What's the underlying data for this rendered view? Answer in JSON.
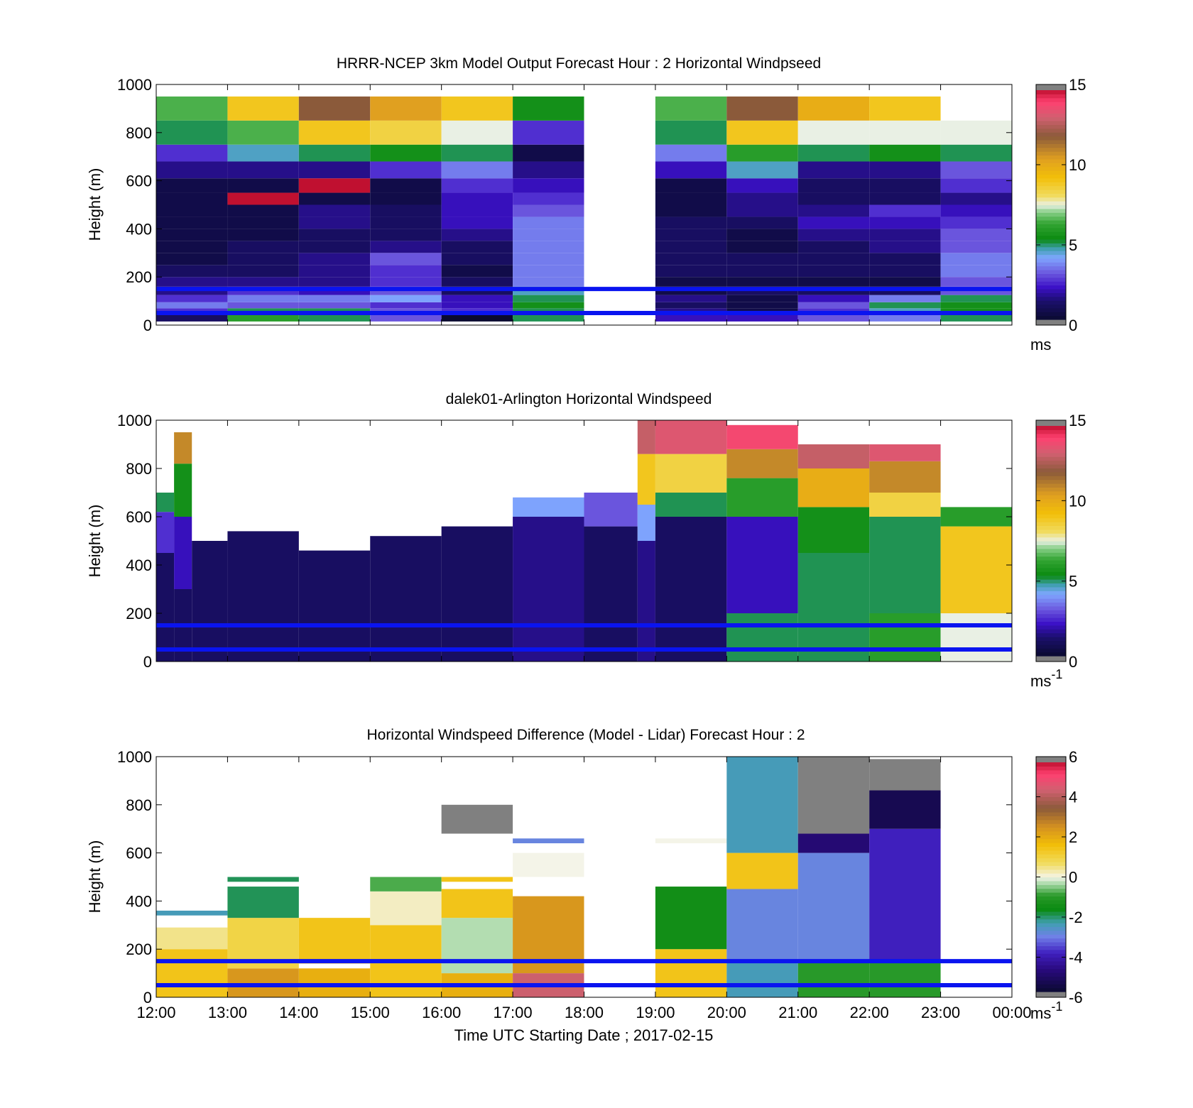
{
  "figure": {
    "xlabel": "Time UTC  Starting Date ; 2017-02-15",
    "x_tick_labels": [
      "12:00",
      "13:00",
      "14:00",
      "15:00",
      "16:00",
      "17:00",
      "18:00",
      "19:00",
      "20:00",
      "21:00",
      "22:00",
      "23:00",
      "00:00"
    ],
    "reference_line_color": "#0a14f0"
  },
  "chart_data": [
    {
      "type": "heatmap",
      "title": "HRRR-NCEP 3km Model Output   Forecast Hour : 2 Horizontal Windpseed",
      "ylabel": "Height (m)",
      "xlabel": "",
      "ylim": [
        0,
        1000
      ],
      "y_ticks": [
        0,
        200,
        400,
        600,
        800,
        1000
      ],
      "xlim": [
        12,
        24
      ],
      "x_tick_labels_shown": false,
      "reference_lines_m": [
        50,
        150
      ],
      "colorbar": {
        "min": 0,
        "max": 15,
        "ticks": [
          0,
          5,
          10,
          15
        ],
        "unit_label": "ms",
        "unit_superscript": "",
        "palette": "wind"
      },
      "column_hours": [
        12,
        13,
        14,
        15,
        16,
        17,
        18,
        19,
        20,
        21,
        22,
        23
      ],
      "row_heights_m": [
        15,
        45,
        70,
        95,
        125,
        160,
        200,
        250,
        300,
        350,
        400,
        450,
        500,
        550,
        610,
        680,
        750,
        850,
        950
      ],
      "values": [
        [
          1.0,
          6.0,
          5.0,
          3.0,
          0.0,
          5.0,
          null,
          2.0,
          2.0,
          3.0,
          3.5,
          5.0
        ],
        [
          2.5,
          5.0,
          5.0,
          3.0,
          2.5,
          5.0,
          null,
          1.5,
          0.5,
          2.5,
          4.5,
          5.5
        ],
        [
          3.5,
          3.0,
          3.0,
          2.5,
          2.0,
          5.5,
          null,
          1.0,
          0.5,
          3.0,
          5.0,
          5.5
        ],
        [
          2.5,
          3.5,
          3.5,
          4.0,
          2.0,
          5.0,
          null,
          1.5,
          0.5,
          2.0,
          3.5,
          5.0
        ],
        [
          1.5,
          2.5,
          2.0,
          3.0,
          1.0,
          4.5,
          null,
          0.5,
          1.0,
          1.0,
          1.0,
          3.0
        ],
        [
          1.5,
          1.5,
          1.5,
          2.5,
          1.0,
          3.5,
          null,
          0.5,
          0.5,
          0.5,
          0.5,
          3.0
        ],
        [
          1.0,
          1.0,
          1.5,
          2.5,
          0.5,
          3.5,
          null,
          1.0,
          1.0,
          1.0,
          1.0,
          3.5
        ],
        [
          0.5,
          1.0,
          1.5,
          3.0,
          1.0,
          3.5,
          null,
          1.0,
          1.0,
          1.0,
          1.0,
          3.5
        ],
        [
          0.5,
          1.0,
          1.0,
          1.5,
          1.0,
          3.5,
          null,
          1.0,
          0.5,
          1.0,
          1.5,
          3.0
        ],
        [
          0.5,
          0.5,
          1.0,
          1.0,
          1.5,
          3.5,
          null,
          1.0,
          0.5,
          1.5,
          1.5,
          3.0
        ],
        [
          0.5,
          0.5,
          1.5,
          1.0,
          2.0,
          3.5,
          null,
          1.0,
          1.0,
          2.0,
          2.0,
          2.5
        ],
        [
          0.5,
          0.5,
          1.5,
          1.0,
          2.0,
          3.0,
          null,
          0.5,
          1.5,
          1.5,
          2.5,
          2.0
        ],
        [
          0.5,
          15.0,
          0.5,
          0.5,
          2.0,
          2.5,
          null,
          0.5,
          1.5,
          1.0,
          1.0,
          1.5
        ],
        [
          0.5,
          0.5,
          15.0,
          0.5,
          2.5,
          2.0,
          null,
          0.5,
          2.0,
          1.0,
          1.0,
          2.5
        ],
        [
          1.5,
          1.5,
          1.5,
          2.5,
          3.5,
          1.5,
          null,
          2.0,
          4.5,
          1.5,
          1.5,
          3.0
        ],
        [
          2.5,
          4.5,
          5.0,
          5.5,
          5.0,
          0.5,
          null,
          3.5,
          6.0,
          5.0,
          5.5,
          5.0
        ],
        [
          5.0,
          6.5,
          9.0,
          8.5,
          7.5,
          2.5,
          null,
          5.0,
          9.0,
          7.5,
          7.5,
          7.5
        ],
        [
          6.5,
          9.0,
          12.0,
          10.5,
          9.0,
          5.5,
          null,
          6.5,
          12.0,
          10.0,
          9.0,
          null
        ]
      ]
    },
    {
      "type": "heatmap",
      "title": "dalek01-Arlington  Horizontal Windspeed",
      "ylabel": "Height (m)",
      "xlabel": "",
      "ylim": [
        0,
        1000
      ],
      "y_ticks": [
        0,
        200,
        400,
        600,
        800,
        1000
      ],
      "xlim": [
        12,
        24
      ],
      "x_tick_labels_shown": false,
      "reference_lines_m": [
        50,
        150
      ],
      "colorbar": {
        "min": 0,
        "max": 15,
        "ticks": [
          0,
          5,
          10,
          15
        ],
        "unit_label": "ms",
        "unit_superscript": "-1",
        "palette": "wind"
      },
      "time_bin_hours": 0.25,
      "height_bin_m": 20,
      "columns_sampled_from": "12:00",
      "values_by_quarter_hour": [
        {
          "t": "12:00",
          "profile": [
            [
              0,
              450,
              1.0
            ],
            [
              450,
              620,
              2.5
            ],
            [
              620,
              700,
              5.0
            ]
          ]
        },
        {
          "t": "12:15",
          "profile": [
            [
              0,
              300,
              1.0
            ],
            [
              300,
              600,
              2.0
            ],
            [
              600,
              820,
              5.5
            ],
            [
              820,
              950,
              11.0
            ]
          ]
        },
        {
          "t": "12:30",
          "profile": [
            [
              0,
              500,
              1.0
            ]
          ]
        },
        {
          "t": "13:00",
          "profile": [
            [
              0,
              540,
              1.0
            ]
          ]
        },
        {
          "t": "14:00",
          "profile": [
            [
              0,
              460,
              1.0
            ]
          ]
        },
        {
          "t": "15:00",
          "profile": [
            [
              0,
              520,
              1.0
            ]
          ]
        },
        {
          "t": "16:00",
          "profile": [
            [
              0,
              560,
              1.0
            ]
          ]
        },
        {
          "t": "17:00",
          "profile": [
            [
              0,
              600,
              1.5
            ],
            [
              600,
              680,
              4.0
            ]
          ]
        },
        {
          "t": "18:00",
          "profile": [
            [
              0,
              560,
              1.0
            ],
            [
              560,
              700,
              3.0
            ]
          ]
        },
        {
          "t": "18:45",
          "profile": [
            [
              0,
              500,
              1.5
            ],
            [
              500,
              650,
              4.0
            ],
            [
              650,
              860,
              9.0
            ],
            [
              860,
              1000,
              13.0
            ]
          ]
        },
        {
          "t": "19:00",
          "profile": [
            [
              0,
              600,
              1.0
            ],
            [
              600,
              700,
              5.0
            ],
            [
              700,
              860,
              8.5
            ],
            [
              860,
              1000,
              13.5
            ]
          ]
        },
        {
          "t": "20:00",
          "profile": [
            [
              0,
              200,
              5.0
            ],
            [
              200,
              600,
              2.0
            ],
            [
              600,
              760,
              6.0
            ],
            [
              760,
              880,
              11.0
            ],
            [
              880,
              980,
              14.0
            ]
          ]
        },
        {
          "t": "21:00",
          "profile": [
            [
              0,
              450,
              5.0
            ],
            [
              450,
              640,
              5.5
            ],
            [
              640,
              800,
              10.0
            ],
            [
              800,
              900,
              13.0
            ]
          ]
        },
        {
          "t": "22:00",
          "profile": [
            [
              0,
              200,
              6.0
            ],
            [
              200,
              600,
              5.0
            ],
            [
              600,
              700,
              8.5
            ],
            [
              700,
              830,
              11.0
            ],
            [
              830,
              900,
              13.5
            ]
          ]
        },
        {
          "t": "23:00",
          "profile": [
            [
              0,
              200,
              7.5
            ],
            [
              200,
              560,
              9.0
            ],
            [
              560,
              640,
              6.0
            ]
          ]
        }
      ]
    },
    {
      "type": "heatmap",
      "title": "Horizontal Windspeed Difference (Model - Lidar) Forecast Hour : 2",
      "ylabel": "Height (m)",
      "xlabel": "Time UTC  Starting Date ; 2017-02-15",
      "ylim": [
        0,
        1000
      ],
      "y_ticks": [
        0,
        200,
        400,
        600,
        800,
        1000
      ],
      "xlim": [
        12,
        24
      ],
      "x_tick_labels_shown": true,
      "reference_lines_m": [
        50,
        150
      ],
      "colorbar": {
        "min": -6,
        "max": 6,
        "ticks": [
          -6,
          -4,
          -2,
          0,
          2,
          4,
          6
        ],
        "unit_label": "ms",
        "unit_superscript": "-1",
        "palette": "diff"
      },
      "column_hours": [
        12,
        13,
        14,
        15,
        16,
        17,
        18,
        19,
        20,
        21,
        22,
        23
      ],
      "column_profiles": [
        [
          [
            0,
            200,
            1.5
          ],
          [
            200,
            290,
            0.5
          ],
          [
            290,
            340,
            null
          ],
          [
            340,
            360,
            -2.5
          ]
        ],
        [
          [
            0,
            120,
            2.5
          ],
          [
            120,
            330,
            1.0
          ],
          [
            330,
            460,
            -2.0
          ],
          [
            480,
            500,
            -2.0
          ]
        ],
        [
          [
            0,
            120,
            2.0
          ],
          [
            120,
            140,
            null
          ],
          [
            140,
            330,
            1.5
          ]
        ],
        [
          [
            0,
            300,
            1.5
          ],
          [
            300,
            440,
            0.2
          ],
          [
            440,
            500,
            -0.8
          ]
        ],
        [
          [
            0,
            100,
            2.0
          ],
          [
            100,
            330,
            -0.3
          ],
          [
            330,
            450,
            1.5
          ],
          [
            480,
            500,
            1.5
          ],
          [
            680,
            800,
            9.0
          ]
        ],
        [
          [
            0,
            100,
            4.5
          ],
          [
            100,
            420,
            2.5
          ],
          [
            500,
            600,
            0.0
          ],
          [
            640,
            660,
            -3.0
          ]
        ],
        [],
        [
          [
            0,
            200,
            1.5
          ],
          [
            200,
            460,
            -1.5
          ],
          [
            640,
            660,
            0.0
          ]
        ],
        [
          [
            0,
            150,
            -2.5
          ],
          [
            150,
            450,
            -3.0
          ],
          [
            450,
            600,
            1.5
          ],
          [
            600,
            1000,
            -2.5
          ]
        ],
        [
          [
            0,
            150,
            -1.0
          ],
          [
            150,
            600,
            -3.0
          ],
          [
            600,
            680,
            -5.0
          ],
          [
            680,
            1000,
            9.0
          ]
        ],
        [
          [
            0,
            150,
            -1.0
          ],
          [
            150,
            700,
            -4.0
          ],
          [
            700,
            860,
            -5.5
          ],
          [
            860,
            990,
            9.0
          ]
        ],
        []
      ]
    }
  ]
}
